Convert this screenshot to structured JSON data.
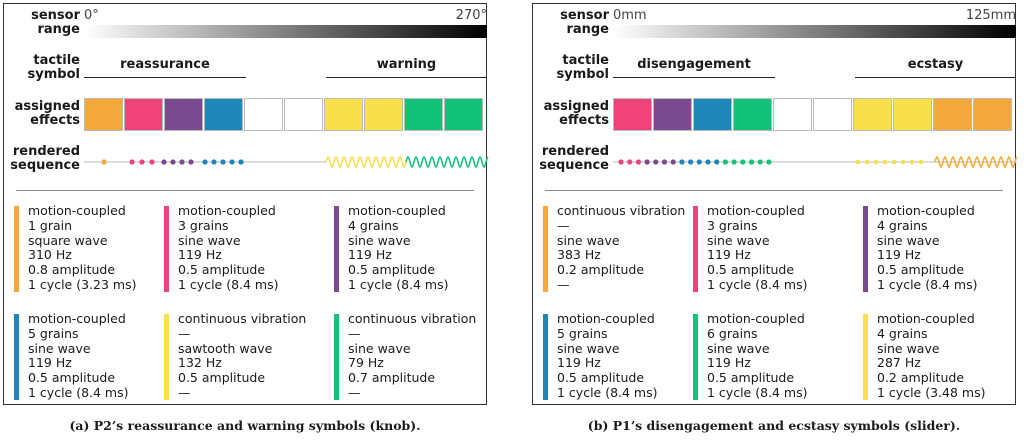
{
  "labels": {
    "sensor_range": [
      "sensor",
      "range"
    ],
    "tactile_symbol": [
      "tactile",
      "symbol"
    ],
    "assigned_effects": [
      "assigned",
      "effects"
    ],
    "rendered_sequence": [
      "rendered",
      "sequence"
    ]
  },
  "panels": [
    {
      "range_start": "0°",
      "range_end": "270°",
      "symbols": [
        "reassurance",
        "warning"
      ],
      "effects": [
        "#F6A83C",
        "#F0437A",
        "#7A4A8E",
        "#1E86B8",
        "#FFFFFF",
        "#FFFFFF",
        "#F8E04C",
        "#F8E04C",
        "#12C27A",
        "#12C27A"
      ],
      "sequence": {
        "dots": [
          "#F6A83C",
          "#F0437A",
          "#F0437A",
          "#F0437A",
          "#7A4A8E",
          "#7A4A8E",
          "#7A4A8E",
          "#7A4A8E",
          "#1E86B8",
          "#1E86B8",
          "#1E86B8",
          "#1E86B8",
          "#1E86B8"
        ],
        "waves": [
          "#F8E04C",
          "#12C27A"
        ]
      },
      "cards": [
        {
          "color": "#F6A83C",
          "lines": [
            "motion-coupled",
            "1 grain",
            "square wave",
            "310 Hz",
            "0.8 amplitude",
            "1 cycle (3.23 ms)"
          ]
        },
        {
          "color": "#F0437A",
          "lines": [
            "motion-coupled",
            "3 grains",
            "sine wave",
            "119 Hz",
            "0.5 amplitude",
            "1 cycle (8.4 ms)"
          ]
        },
        {
          "color": "#7A4A8E",
          "lines": [
            "motion-coupled",
            "4 grains",
            "sine wave",
            "119 Hz",
            "0.5 amplitude",
            "1 cycle (8.4 ms)"
          ]
        },
        {
          "color": "#1E86B8",
          "lines": [
            "motion-coupled",
            "5 grains",
            "sine wave",
            "119 Hz",
            "0.5 amplitude",
            "1 cycle (8.4 ms)"
          ]
        },
        {
          "color": "#F8E04C",
          "lines": [
            "continuous vibration",
            "—",
            "sawtooth wave",
            "132 Hz",
            "0.5 amplitude",
            "—"
          ]
        },
        {
          "color": "#12C27A",
          "lines": [
            "continuous vibration",
            "—",
            "sine wave",
            "79 Hz",
            "0.7 amplitude",
            "—"
          ]
        }
      ],
      "caption": "(a) P2’s reassurance and warning symbols (knob)."
    },
    {
      "range_start": "0mm",
      "range_end": "125mm",
      "symbols": [
        "disengagement",
        "ecstasy"
      ],
      "effects": [
        "#F0437A",
        "#7A4A8E",
        "#1E86B8",
        "#12C27A",
        "#FFFFFF",
        "#FFFFFF",
        "#F8E04C",
        "#F8E04C",
        "#F6A83C",
        "#F6A83C"
      ],
      "sequence": {
        "dots": [
          "#F0437A",
          "#F0437A",
          "#F0437A",
          "#7A4A8E",
          "#7A4A8E",
          "#7A4A8E",
          "#7A4A8E",
          "#1E86B8",
          "#1E86B8",
          "#1E86B8",
          "#1E86B8",
          "#1E86B8",
          "#12C27A",
          "#12C27A",
          "#12C27A",
          "#12C27A",
          "#12C27A",
          "#12C27A"
        ],
        "yellow_dots": [
          "#F8E04C",
          "#F8E04C",
          "#F8E04C",
          "#F8E04C",
          "#F8E04C",
          "#F8E04C",
          "#F8E04C",
          "#F8E04C"
        ],
        "waves": [
          "#F6A83C"
        ]
      },
      "cards": [
        {
          "color": "#F6A83C",
          "lines": [
            "continuous vibration",
            "—",
            "sine wave",
            "383 Hz",
            "0.2 amplitude",
            "—"
          ]
        },
        {
          "color": "#F0437A",
          "lines": [
            "motion-coupled",
            "3 grains",
            "sine wave",
            "119 Hz",
            "0.5 amplitude",
            "1 cycle (8.4 ms)"
          ]
        },
        {
          "color": "#7A4A8E",
          "lines": [
            "motion-coupled",
            "4 grains",
            "sine wave",
            "119 Hz",
            "0.5 amplitude",
            "1 cycle (8.4 ms)"
          ]
        },
        {
          "color": "#1E86B8",
          "lines": [
            "motion-coupled",
            "5 grains",
            "sine wave",
            "119 Hz",
            "0.5 amplitude",
            "1 cycle (8.4 ms)"
          ]
        },
        {
          "color": "#12C27A",
          "lines": [
            "motion-coupled",
            "6 grains",
            "sine wave",
            "119 Hz",
            "0.5 amplitude",
            "1 cycle (8.4 ms)"
          ]
        },
        {
          "color": "#F8E04C",
          "lines": [
            "motion-coupled",
            "4 grains",
            "sine wave",
            "287 Hz",
            "0.2 amplitude",
            "1 cycle (3.48 ms)"
          ]
        }
      ],
      "caption": "(b) P1’s disengagement and ecstasy symbols (slider)."
    }
  ]
}
